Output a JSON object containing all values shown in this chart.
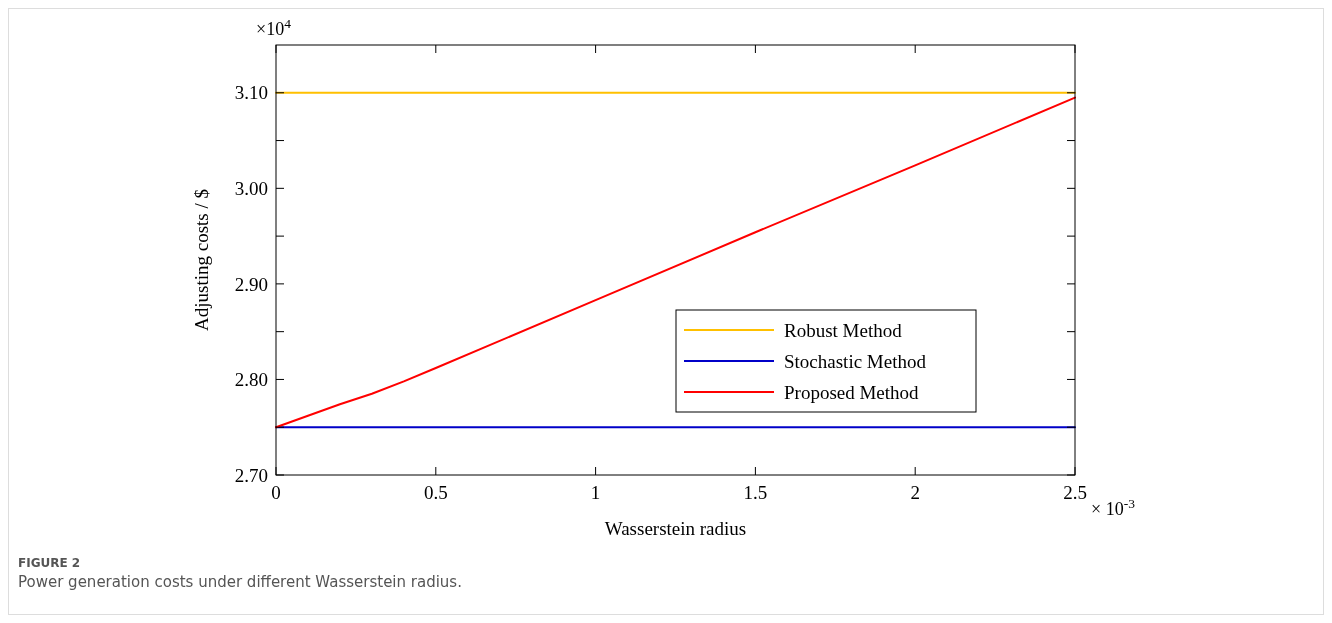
{
  "chart_data": {
    "type": "line",
    "title": "FIGURE 2",
    "subtitle": "Power generation costs under different Wasserstein radius.",
    "xlabel": "Wasserstein radius",
    "ylabel": "Adjusting costs / $",
    "annotations": [
      "×10$^{4}$",
      "× 10$^{-3}$"
    ],
    "x": [
      0,
      0.1,
      0.2,
      0.3,
      0.4,
      0.5,
      1,
      1.5,
      2,
      2.5
    ],
    "series": [
      {
        "name": "Robust Method",
        "color": "#ffc000",
        "values": [
          3.1,
          3.1,
          3.1,
          3.1,
          3.1,
          3.1,
          3.1,
          3.1,
          3.1,
          3.1
        ]
      },
      {
        "name": "Stochastic Method",
        "color": "#0000c8",
        "values": [
          2.75,
          2.75,
          2.75,
          2.75,
          2.75,
          2.75,
          2.75,
          2.75,
          2.75,
          2.75
        ]
      },
      {
        "name": "Proposed Method",
        "color": "#ff0000",
        "values": [
          2.75,
          2.762,
          2.774,
          2.785,
          2.798,
          2.812,
          2.883,
          2.954,
          3.024,
          3.095
        ]
      }
    ],
    "xlim": [
      0,
      2.5
    ],
    "ylim": [
      2.7,
      3.15
    ],
    "xticks": [
      0,
      0.5,
      1,
      1.5,
      2,
      2.5
    ],
    "yticks": [
      {
        "value": 2.7,
        "label": "2.70"
      },
      {
        "value": 2.75,
        "label": null
      },
      {
        "value": 2.8,
        "label": "2.80"
      },
      {
        "value": 2.85,
        "label": null
      },
      {
        "value": 2.9,
        "label": "2.90"
      },
      {
        "value": 2.95,
        "label": null
      },
      {
        "value": 3.0,
        "label": "3.00"
      },
      {
        "value": 3.05,
        "label": null
      },
      {
        "value": 3.1,
        "label": "3.10"
      }
    ],
    "grid": false,
    "legend": "right",
    "line_style": "solid"
  }
}
